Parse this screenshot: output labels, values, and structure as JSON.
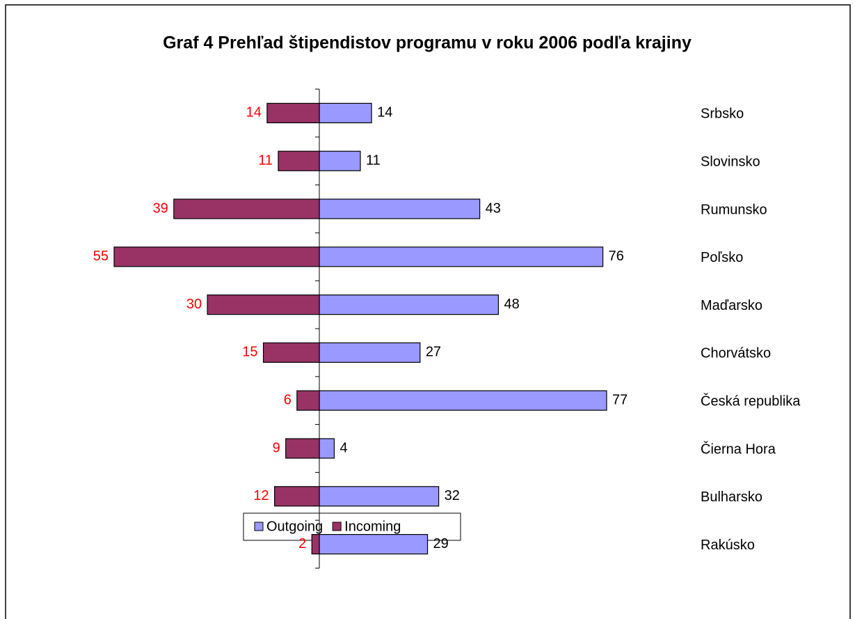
{
  "chart_data": {
    "type": "butterfly_bar",
    "title": "Graf 4 Prehľad štipendistov programu v roku 2006 podľa krajiny",
    "categories": [
      "Srbsko",
      "Slovinsko",
      "Rumunsko",
      "Poľsko",
      "Maďarsko",
      "Chorvátsko",
      "Česká republika",
      "Čierna Hora",
      "Bulharsko",
      "Rakúsko"
    ],
    "series": [
      {
        "name": "Outgoing",
        "color": "#9999ff",
        "label_color": "#000000",
        "side": "right",
        "values": [
          14,
          11,
          43,
          76,
          48,
          27,
          77,
          4,
          32,
          29
        ]
      },
      {
        "name": "Incoming",
        "color": "#993366",
        "label_color": "#ff0000",
        "side": "left",
        "values": [
          14,
          11,
          39,
          55,
          30,
          15,
          6,
          9,
          12,
          2
        ]
      }
    ],
    "legend": "bottom"
  }
}
